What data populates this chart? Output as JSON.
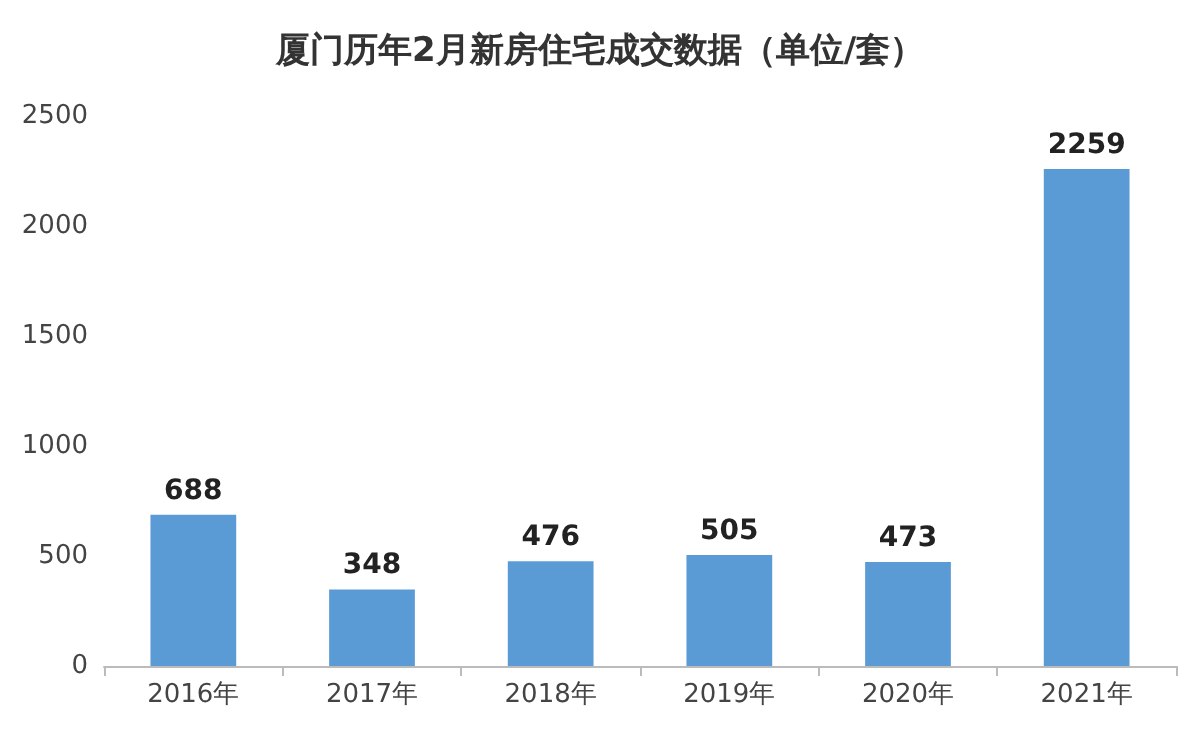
{
  "chart_data": {
    "type": "bar",
    "title": "厦门历年2月新房住宅成交数据（单位/套）",
    "categories": [
      "2016年",
      "2017年",
      "2018年",
      "2019年",
      "2020年",
      "2021年"
    ],
    "values": [
      688,
      348,
      476,
      505,
      473,
      2259
    ],
    "color": "#5b9bd5",
    "ylim": [
      0,
      2500
    ],
    "yticks": [
      0,
      500,
      1000,
      1500,
      2000,
      2500
    ],
    "grid": false,
    "data_labels": true
  }
}
